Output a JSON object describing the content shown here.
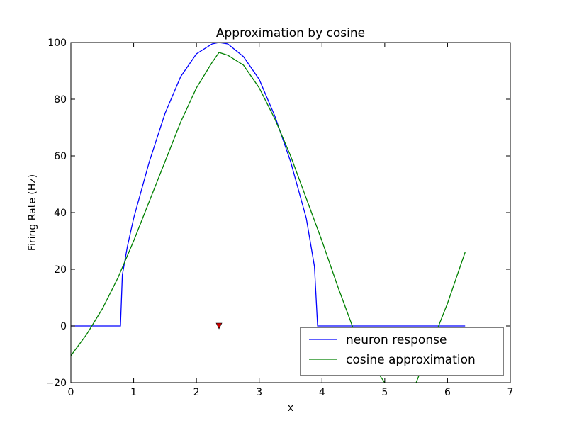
{
  "chart_data": {
    "type": "line",
    "title": "Approximation by cosine",
    "xlabel": "x",
    "ylabel": "Firing Rate (Hz)",
    "xlim": [
      0,
      7
    ],
    "ylim": [
      -20,
      100
    ],
    "xticks": [
      0,
      1,
      2,
      3,
      4,
      5,
      6,
      7
    ],
    "yticks": [
      {
        "value": -20,
        "label": "−20"
      },
      0,
      20,
      40,
      60,
      80,
      100
    ],
    "grid": false,
    "legend": "lower right",
    "series": [
      {
        "name": "neuron response",
        "color": "#0000ff",
        "x": [
          0,
          0.75,
          0.79,
          0.82,
          0.9,
          1.0,
          1.25,
          1.5,
          1.75,
          2.0,
          2.25,
          2.36,
          2.5,
          2.75,
          3.0,
          3.25,
          3.5,
          3.75,
          3.88,
          3.93,
          6.28
        ],
        "values": [
          0,
          0,
          0,
          18,
          28,
          38,
          58,
          75,
          88,
          96,
          99.5,
          100,
          99.5,
          95,
          87,
          74,
          58,
          38,
          21,
          0,
          0
        ]
      },
      {
        "name": "cosine approximation",
        "color": "#008000",
        "x": [
          0,
          0.25,
          0.5,
          0.75,
          1.0,
          1.25,
          1.5,
          1.75,
          2.0,
          2.25,
          2.36,
          2.5,
          2.75,
          3.0,
          3.25,
          3.5,
          3.75,
          4.0,
          4.25,
          4.5,
          4.75,
          5.0,
          5.25,
          5.5,
          5.75,
          6.0,
          6.28
        ],
        "values": [
          -10.5,
          -3,
          6,
          17,
          30,
          44,
          58,
          72,
          84,
          93,
          96.5,
          95.5,
          92,
          84,
          73,
          60,
          45,
          30,
          14,
          -1,
          -12,
          -20,
          -23,
          -20,
          -6,
          8,
          26
        ]
      }
    ],
    "markers": {
      "x": [
        2.36
      ],
      "values": [
        0
      ],
      "color": "#cc0000"
    }
  }
}
